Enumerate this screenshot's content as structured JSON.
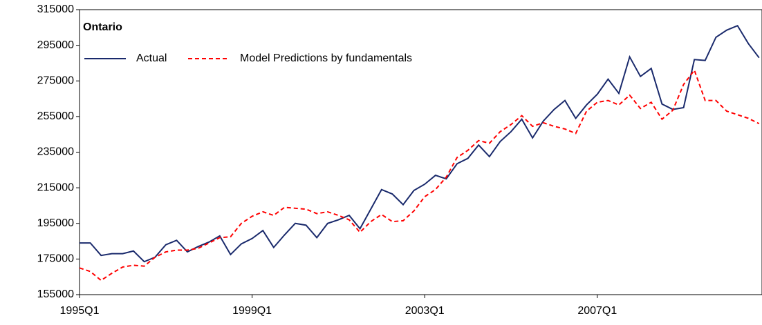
{
  "chart_data": {
    "type": "line",
    "title": "Ontario",
    "categories": [
      "1995Q1",
      null,
      null,
      null,
      null,
      null,
      null,
      null,
      null,
      null,
      null,
      null,
      null,
      null,
      null,
      null,
      "1999Q1",
      null,
      null,
      null,
      null,
      null,
      null,
      null,
      null,
      null,
      null,
      null,
      null,
      null,
      null,
      null,
      "2003Q1",
      null,
      null,
      null,
      null,
      null,
      null,
      null,
      null,
      null,
      null,
      null,
      null,
      null,
      null,
      null,
      "2007Q1",
      null,
      null,
      null,
      null,
      null,
      null,
      null,
      null,
      null,
      null,
      null,
      null,
      null,
      null,
      null
    ],
    "series": [
      {
        "name": "Actual",
        "color": "#1a2a6c",
        "dash": false,
        "values": [
          184000,
          184000,
          177000,
          178000,
          178000,
          179500,
          173500,
          176000,
          183000,
          185500,
          179000,
          182000,
          184500,
          188000,
          177500,
          183500,
          186500,
          191000,
          181500,
          188500,
          195000,
          194000,
          187000,
          195000,
          197000,
          199500,
          192000,
          203000,
          214000,
          211500,
          205500,
          213500,
          217000,
          222000,
          220000,
          228500,
          231500,
          239000,
          232500,
          241000,
          246500,
          253500,
          243000,
          252500,
          259000,
          264000,
          254000,
          261500,
          267500,
          276000,
          268000,
          288500,
          277500,
          282000,
          262000,
          259000,
          260000,
          287000,
          286500,
          299500,
          303500,
          306000,
          296000,
          288000
        ]
      },
      {
        "name": "Model Predictions by fundamentals",
        "color": "#ff0000",
        "dash": true,
        "values": [
          170000,
          168000,
          163000,
          167000,
          170500,
          171500,
          171000,
          176000,
          179000,
          180000,
          180000,
          181000,
          184000,
          187000,
          187500,
          195000,
          199000,
          201500,
          199500,
          204000,
          203500,
          203000,
          200500,
          201500,
          199500,
          197000,
          190000,
          196000,
          200000,
          196000,
          196500,
          202000,
          210000,
          214000,
          221000,
          232000,
          236000,
          241500,
          240000,
          246500,
          250500,
          255500,
          249500,
          251500,
          249500,
          248000,
          245500,
          258000,
          263000,
          264000,
          261500,
          267000,
          259500,
          263000,
          253500,
          258500,
          273000,
          281000,
          264000,
          264000,
          258000,
          256000,
          254000,
          251000
        ]
      }
    ],
    "ylim": [
      155000,
      315000
    ],
    "yticks": [
      155000,
      175000,
      195000,
      215000,
      235000,
      255000,
      275000,
      295000,
      315000
    ],
    "grid": false
  }
}
